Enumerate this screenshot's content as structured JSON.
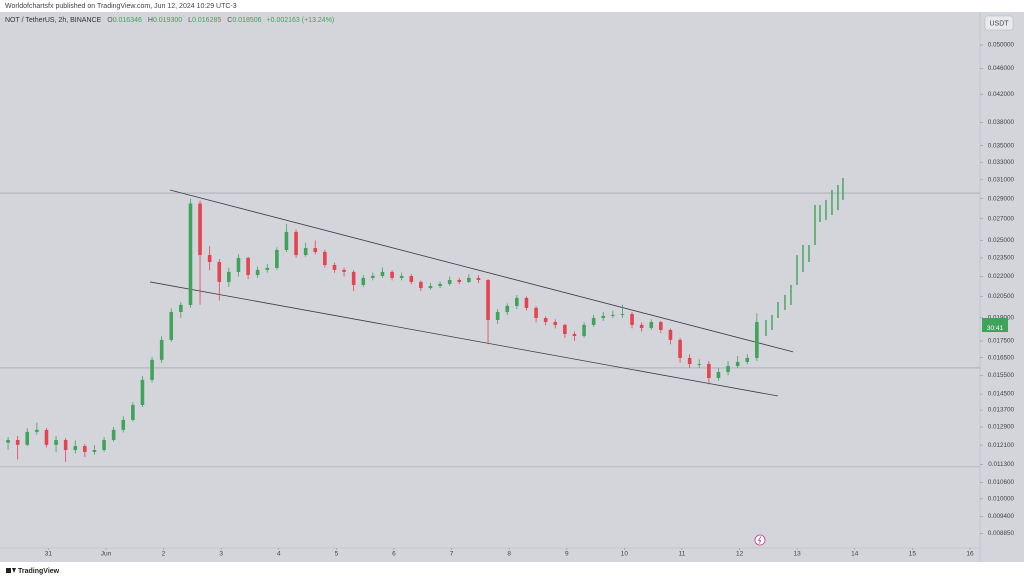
{
  "header": {
    "publisher": "Worldofchartsfx published on TradingView.com, Jun 12, 2024 10:29 UTC-3",
    "symbol": "NOT / TetherUS, 2h, BINANCE",
    "ohlc": [
      {
        "key": "O",
        "value": "0.016346"
      },
      {
        "key": "H",
        "value": "0.019300"
      },
      {
        "key": "L",
        "value": "0.016285"
      },
      {
        "key": "C",
        "value": "0.018506"
      }
    ],
    "change": "+0.002163 (+13.24%)"
  },
  "currency": "USDT",
  "brand": "TradingView",
  "chart_data": {
    "type": "candlestick",
    "x": [
      -0.7,
      -0.533,
      -0.367,
      -0.2,
      -0.033,
      0.133,
      0.3,
      0.467,
      0.633,
      0.8,
      0.967,
      1.133,
      1.3,
      1.467,
      1.633,
      1.8,
      1.967,
      2.133,
      2.3,
      2.467,
      2.633,
      2.8,
      2.967,
      3.133,
      3.3,
      3.467,
      3.633,
      3.8,
      3.967,
      4.133,
      4.3,
      4.467,
      4.633,
      4.8,
      4.967,
      5.133,
      5.3,
      5.467,
      5.633,
      5.8,
      5.967,
      6.133,
      6.3,
      6.467,
      6.633,
      6.8,
      6.967,
      7.133,
      7.3,
      7.467,
      7.633,
      7.8,
      7.967,
      8.133,
      8.3,
      8.467,
      8.633,
      8.8,
      8.967,
      9.133,
      9.3,
      9.467,
      9.633,
      9.8,
      9.967,
      10.133,
      10.3,
      10.467,
      10.633,
      10.8,
      10.967,
      11.133,
      11.3,
      11.467,
      11.633,
      11.8,
      11.967,
      12.133,
      12.3
    ],
    "open": [
      0.0122,
      0.01232,
      0.01211,
      0.01268,
      0.01277,
      0.01211,
      0.01232,
      0.01189,
      0.01206,
      0.01181,
      0.01189,
      0.01232,
      0.01277,
      0.01323,
      0.01395,
      0.01525,
      0.01637,
      0.01757,
      0.0194,
      0.01989,
      0.0285,
      0.02374,
      0.02316,
      0.02158,
      0.02236,
      0.0235,
      0.02212,
      0.02252,
      0.02268,
      0.02417,
      0.02577,
      0.02374,
      0.02434,
      0.024,
      0.02292,
      0.02252,
      0.02236,
      0.02135,
      0.02189,
      0.02204,
      0.02236,
      0.02189,
      0.02204,
      0.02158,
      0.02112,
      0.02127,
      0.02143,
      0.02173,
      0.02158,
      0.02189,
      0.02173,
      0.01886,
      0.0194,
      0.01982,
      0.02039,
      0.01968,
      0.01899,
      0.01872,
      0.01853,
      0.01794,
      0.01782,
      0.01853,
      0.01899,
      0.01913,
      0.0192,
      0.01926,
      0.01853,
      0.01833,
      0.01872,
      0.0182,
      0.01757,
      0.01648,
      0.01613,
      0.01613,
      0.01535,
      0.01568,
      0.01602,
      0.01625,
      0.01648
    ],
    "high": [
      0.01245,
      0.0125,
      0.01285,
      0.0131,
      0.01285,
      0.0125,
      0.0124,
      0.0123,
      0.01215,
      0.0121,
      0.01245,
      0.0129,
      0.0134,
      0.0141,
      0.01545,
      0.01655,
      0.0178,
      0.01965,
      0.0201,
      0.029,
      0.0288,
      0.0245,
      0.0234,
      0.0227,
      0.0238,
      0.0236,
      0.0228,
      0.023,
      0.0244,
      0.0265,
      0.026,
      0.0248,
      0.025,
      0.0242,
      0.0231,
      0.0227,
      0.0225,
      0.0221,
      0.0223,
      0.0227,
      0.0225,
      0.0223,
      0.0222,
      0.0217,
      0.0215,
      0.0216,
      0.022,
      0.0219,
      0.0222,
      0.0221,
      0.0218,
      0.0196,
      0.02,
      0.0206,
      0.0205,
      0.0198,
      0.0191,
      0.0189,
      0.0186,
      0.0181,
      0.0187,
      0.0192,
      0.0194,
      0.0195,
      0.0199,
      0.0194,
      0.0187,
      0.0189,
      0.0188,
      0.0183,
      0.0177,
      0.0167,
      0.0164,
      0.0163,
      0.0159,
      0.0163,
      0.0166,
      0.0167,
      0.0193
    ],
    "low": [
      0.0119,
      0.0115,
      0.01205,
      0.01255,
      0.012,
      0.0118,
      0.0114,
      0.01175,
      0.0116,
      0.0117,
      0.0118,
      0.01225,
      0.01265,
      0.01315,
      0.01385,
      0.0151,
      0.0162,
      0.01745,
      0.019,
      0.0197,
      0.0199,
      0.0225,
      0.0202,
      0.0212,
      0.022,
      0.0218,
      0.0219,
      0.0223,
      0.0225,
      0.024,
      0.0235,
      0.0236,
      0.0238,
      0.0227,
      0.0223,
      0.022,
      0.0209,
      0.0212,
      0.0217,
      0.0219,
      0.0217,
      0.0217,
      0.0214,
      0.0209,
      0.021,
      0.0211,
      0.0213,
      0.0214,
      0.0215,
      0.0215,
      0.0173,
      0.0186,
      0.0192,
      0.0196,
      0.0195,
      0.0187,
      0.0185,
      0.0183,
      0.0177,
      0.0175,
      0.0177,
      0.0184,
      0.0188,
      0.019,
      0.019,
      0.0183,
      0.0181,
      0.0182,
      0.018,
      0.0173,
      0.0162,
      0.0159,
      0.0159,
      0.015,
      0.0152,
      0.0155,
      0.0159,
      0.0161,
      0.0163
    ],
    "close": [
      0.01232,
      0.01211,
      0.01268,
      0.01277,
      0.01211,
      0.01232,
      0.01189,
      0.01206,
      0.01181,
      0.01189,
      0.01232,
      0.01277,
      0.01323,
      0.01395,
      0.01525,
      0.01637,
      0.01757,
      0.0194,
      0.01989,
      0.0285,
      0.02374,
      0.02316,
      0.02158,
      0.02236,
      0.0235,
      0.02212,
      0.02252,
      0.02268,
      0.02417,
      0.02577,
      0.02374,
      0.02434,
      0.024,
      0.02292,
      0.02252,
      0.02236,
      0.02135,
      0.02189,
      0.02204,
      0.02236,
      0.02189,
      0.02204,
      0.02158,
      0.02112,
      0.02127,
      0.02143,
      0.02173,
      0.02158,
      0.02189,
      0.02173,
      0.01886,
      0.0194,
      0.01982,
      0.02039,
      0.01968,
      0.01899,
      0.01872,
      0.01853,
      0.01794,
      0.01782,
      0.01853,
      0.01899,
      0.01913,
      0.0192,
      0.01926,
      0.01853,
      0.01833,
      0.01872,
      0.0182,
      0.01757,
      0.01648,
      0.01613,
      0.01613,
      0.01535,
      0.01568,
      0.01602,
      0.01625,
      0.01648,
      0.01872
    ],
    "up_color": "#3fa35b",
    "down_color": "#e5434f",
    "projection": {
      "color": "#3fa35b",
      "x": [
        12.458,
        12.563,
        12.667,
        12.788,
        12.892,
        12.997,
        13.101,
        13.205,
        13.309,
        13.396,
        13.5,
        13.604,
        13.708,
        13.795
      ],
      "low": [
        0.01782,
        0.0182,
        0.01899,
        0.01954,
        0.01989,
        0.02135,
        0.02236,
        0.02316,
        0.0246,
        0.02669,
        0.02688,
        0.02736,
        0.02785,
        0.02886
      ],
      "high": [
        0.01886,
        0.0192,
        0.0201,
        0.02061,
        0.02135,
        0.02374,
        0.0246,
        0.0246,
        0.02835,
        0.02835,
        0.02886,
        0.0299,
        0.03044,
        0.0312
      ]
    },
    "trend_lines": [
      {
        "x": [
          2.11,
          12.93
        ],
        "y": [
          0.0299,
          0.01684
        ]
      },
      {
        "x": [
          1.764,
          12.667
        ],
        "y": [
          0.02158,
          0.0144
        ]
      }
    ],
    "hlines": [
      0.02958,
      0.01591,
      0.0112
    ],
    "countdown": "30:41",
    "log_scale": true,
    "xlim": [
      -0.84,
      16.174
    ],
    "xticks": [
      {
        "value": 0,
        "label": "31"
      },
      {
        "value": 1,
        "label": "Jun"
      },
      2,
      3,
      4,
      5,
      6,
      7,
      8,
      9,
      10,
      11,
      12,
      13,
      14,
      15,
      16
    ],
    "ylim": [
      0.0084,
      0.05621
    ],
    "yticks": [
      {
        "value": 0.05,
        "label": "0.050000"
      },
      {
        "value": 0.046,
        "label": "0.046000"
      },
      {
        "value": 0.042,
        "label": "0.042000"
      },
      {
        "value": 0.038,
        "label": "0.038000"
      },
      {
        "value": 0.035,
        "label": "0.035000"
      },
      {
        "value": 0.033,
        "label": "0.033000"
      },
      {
        "value": 0.031,
        "label": "0.031000"
      },
      {
        "value": 0.029,
        "label": "0.029000"
      },
      {
        "value": 0.027,
        "label": "0.027000"
      },
      {
        "value": 0.025,
        "label": "0.025000"
      },
      {
        "value": 0.0235,
        "label": "0.023500"
      },
      {
        "value": 0.022,
        "label": "0.022000"
      },
      {
        "value": 0.0205,
        "label": "0.020500"
      },
      {
        "value": 0.019,
        "label": "0.019000"
      },
      {
        "value": 0.0175,
        "label": "0.017500"
      },
      {
        "value": 0.0165,
        "label": "0.016500"
      },
      {
        "value": 0.0155,
        "label": "0.015500"
      },
      {
        "value": 0.0145,
        "label": "0.014500"
      },
      {
        "value": 0.0137,
        "label": "0.013700"
      },
      {
        "value": 0.0129,
        "label": "0.012900"
      },
      {
        "value": 0.0121,
        "label": "0.012100"
      },
      {
        "value": 0.0113,
        "label": "0.011300"
      },
      {
        "value": 0.0106,
        "label": "0.010600"
      },
      {
        "value": 0.01,
        "label": "0.010000"
      },
      {
        "value": 0.0094,
        "label": "0.009400"
      },
      {
        "value": 0.00885,
        "label": "0.008850"
      }
    ]
  }
}
